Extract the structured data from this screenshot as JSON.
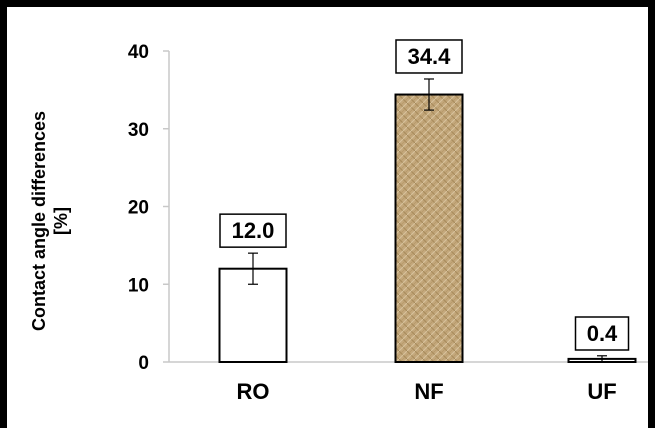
{
  "chart_data": {
    "type": "bar",
    "categories": [
      "RO",
      "NF",
      "UF"
    ],
    "values": [
      12.0,
      34.4,
      0.4
    ],
    "errors": [
      2.0,
      2.0,
      0.4
    ],
    "data_labels": [
      "12.0",
      "34.4",
      "0.4"
    ],
    "ylabel_lines": [
      "Contact angle differences",
      "[%]"
    ],
    "ylim": [
      0,
      40
    ],
    "yticks": [
      0,
      10,
      20,
      30,
      40
    ],
    "grid": false,
    "legend": "none",
    "bar_fills": [
      "#ffffff",
      "#c2a67a",
      "#ffffff"
    ],
    "bar_texture": [
      "none",
      "burlap",
      "none"
    ]
  }
}
